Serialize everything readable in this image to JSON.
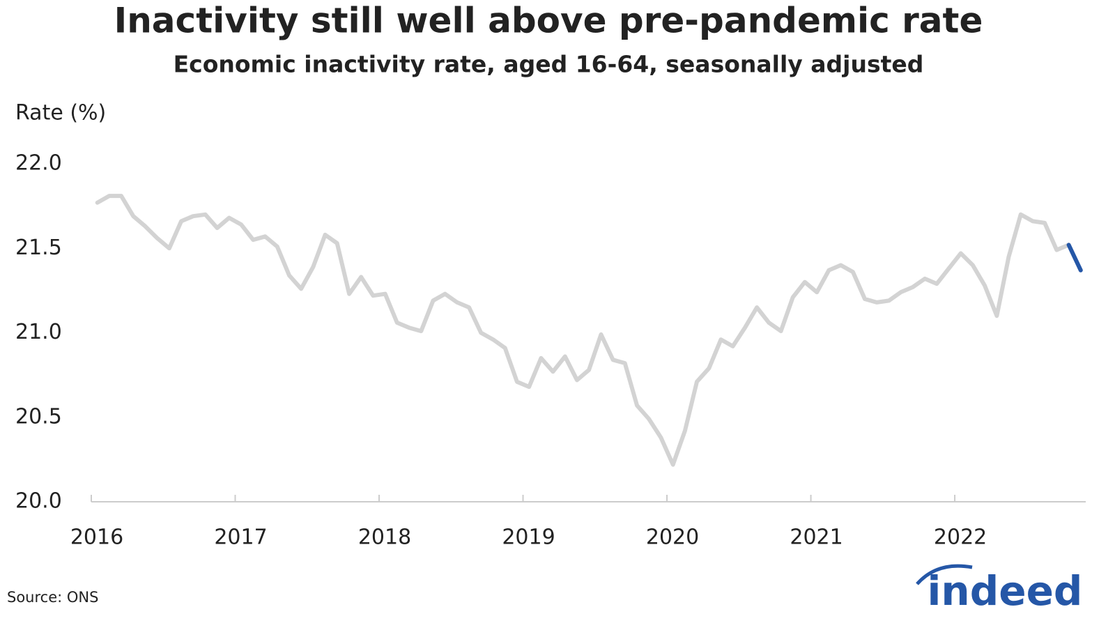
{
  "chart_data": {
    "type": "line",
    "title": "Inactivity still well above pre-pandemic rate",
    "subtitle": "Economic inactivity rate, aged 16-64, seasonally adjusted",
    "y_label": "Rate (%)",
    "source": "Source: ONS",
    "logo": "indeed",
    "x": [
      2016.042,
      2016.125,
      2016.208,
      2016.292,
      2016.375,
      2016.458,
      2016.542,
      2016.625,
      2016.708,
      2016.792,
      2016.875,
      2016.958,
      2017.042,
      2017.125,
      2017.208,
      2017.292,
      2017.375,
      2017.458,
      2017.542,
      2017.625,
      2017.708,
      2017.792,
      2017.875,
      2017.958,
      2018.042,
      2018.125,
      2018.208,
      2018.292,
      2018.375,
      2018.458,
      2018.542,
      2018.625,
      2018.708,
      2018.792,
      2018.875,
      2018.958,
      2019.042,
      2019.125,
      2019.208,
      2019.292,
      2019.375,
      2019.458,
      2019.542,
      2019.625,
      2019.708,
      2019.792,
      2019.875,
      2019.958,
      2020.042,
      2020.125,
      2020.208,
      2020.292,
      2020.375,
      2020.458,
      2020.542,
      2020.625,
      2020.708,
      2020.792,
      2020.875,
      2020.958,
      2021.042,
      2021.125,
      2021.208,
      2021.292,
      2021.375,
      2021.458,
      2021.542,
      2021.625,
      2021.708,
      2021.792,
      2021.875,
      2021.958,
      2022.042,
      2022.125,
      2022.208,
      2022.292,
      2022.375,
      2022.458,
      2022.542,
      2022.625,
      2022.708,
      2022.792,
      2022.875
    ],
    "series": [
      {
        "color": "#d3d3d3",
        "values": [
          21.77,
          21.81,
          21.81,
          21.69,
          21.63,
          21.56,
          21.5,
          21.66,
          21.69,
          21.7,
          21.62,
          21.68,
          21.64,
          21.55,
          21.57,
          21.51,
          21.34,
          21.26,
          21.39,
          21.58,
          21.53,
          21.23,
          21.33,
          21.22,
          21.23,
          21.06,
          21.03,
          21.01,
          21.19,
          21.23,
          21.18,
          21.15,
          21.0,
          20.96,
          20.91,
          20.71,
          20.68,
          20.85,
          20.77,
          20.86,
          20.72,
          20.78,
          20.99,
          20.84,
          20.82,
          20.57,
          20.49,
          20.38,
          20.22,
          20.42,
          20.71,
          20.79,
          20.96,
          20.92,
          21.03,
          21.15,
          21.06,
          21.01,
          21.21,
          21.3,
          21.24,
          21.37,
          21.4,
          21.36,
          21.2,
          21.18,
          21.19,
          21.24,
          21.27,
          21.32,
          21.29,
          21.38,
          21.47,
          21.4,
          21.28,
          21.1,
          21.45,
          21.7,
          21.66,
          21.65,
          21.49,
          21.52,
          null
        ]
      },
      {
        "color": "#2557a7",
        "values": [
          null,
          null,
          null,
          null,
          null,
          null,
          null,
          null,
          null,
          null,
          null,
          null,
          null,
          null,
          null,
          null,
          null,
          null,
          null,
          null,
          null,
          null,
          null,
          null,
          null,
          null,
          null,
          null,
          null,
          null,
          null,
          null,
          null,
          null,
          null,
          null,
          null,
          null,
          null,
          null,
          null,
          null,
          null,
          null,
          null,
          null,
          null,
          null,
          null,
          null,
          null,
          null,
          null,
          null,
          null,
          null,
          null,
          null,
          null,
          null,
          null,
          null,
          null,
          null,
          null,
          null,
          null,
          null,
          null,
          null,
          null,
          null,
          null,
          null,
          null,
          null,
          null,
          null,
          null,
          null,
          null,
          21.52,
          21.37
        ]
      }
    ],
    "xlim": [
      2016,
      2022.91
    ],
    "xticks": [
      2016,
      2017,
      2018,
      2019,
      2020,
      2021,
      2022
    ],
    "ylim": [
      20.0,
      22.0
    ],
    "yticks": [
      {
        "value": 20,
        "label": "20.0"
      },
      {
        "value": 20.5,
        "label": "20.5"
      },
      {
        "value": 21,
        "label": "21.0"
      },
      {
        "value": 21.5,
        "label": "21.5"
      },
      {
        "value": 22,
        "label": "22.0"
      }
    ]
  }
}
